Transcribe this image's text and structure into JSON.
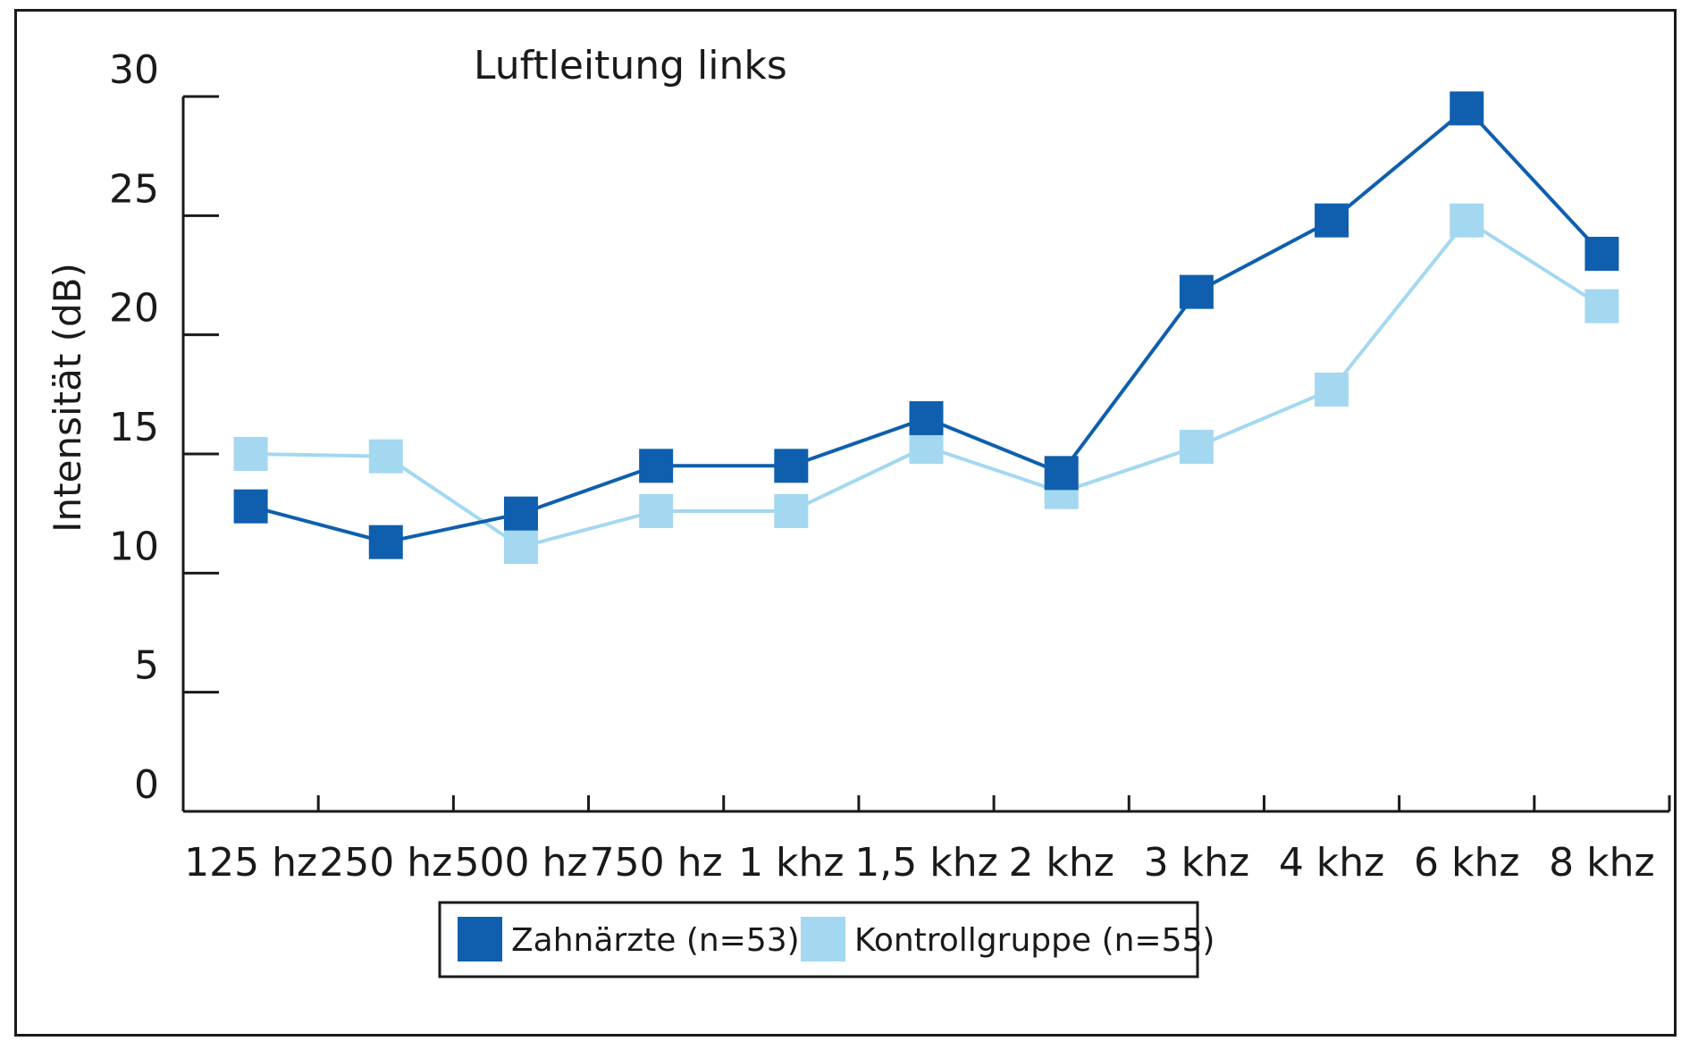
{
  "chart_data": {
    "type": "line",
    "title": "Luftleitung links",
    "xlabel": "",
    "ylabel": "Intensität (dB)",
    "ylim": [
      0,
      30
    ],
    "yticks": [
      0,
      5,
      10,
      15,
      20,
      25,
      30
    ],
    "categories": [
      "125 hz",
      "250 hz",
      "500 hz",
      "750 hz",
      "1 khz",
      "1,5 khz",
      "2 khz",
      "3 khz",
      "4 khz",
      "6 khz",
      "8 khz"
    ],
    "series": [
      {
        "name": "Zahnärzte (n=53)",
        "color": "#0f5fae",
        "values": [
          12.8,
          11.3,
          12.5,
          14.5,
          14.5,
          16.5,
          14.2,
          21.8,
          24.8,
          29.5,
          23.4
        ]
      },
      {
        "name": "Kontrollgruppe (n=55)",
        "color": "#a3d8f0",
        "values": [
          15.0,
          14.9,
          11.1,
          12.6,
          12.6,
          15.3,
          13.4,
          15.3,
          17.7,
          24.8,
          21.2
        ]
      }
    ],
    "grid": false,
    "legend_position": "bottom"
  }
}
